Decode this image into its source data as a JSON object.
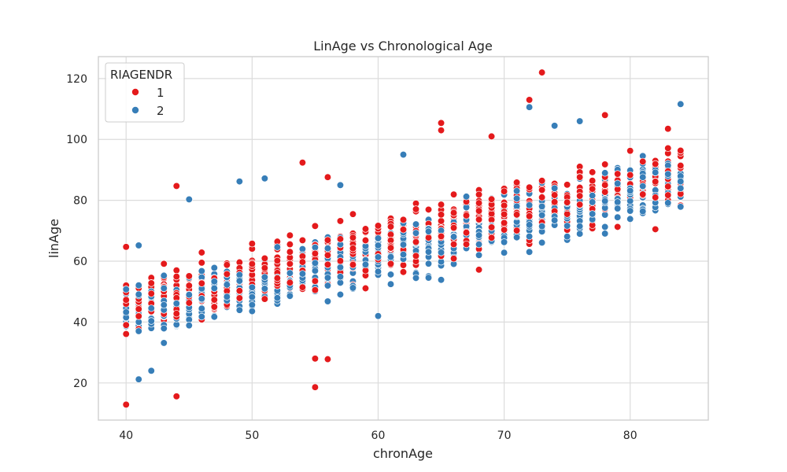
{
  "chart_data": {
    "type": "scatter",
    "title": "LinAge vs Chronological Age",
    "xlabel": "chronAge",
    "ylabel": "linAge",
    "xlim": [
      37.8,
      86.2
    ],
    "ylim": [
      7.8,
      127.2
    ],
    "xticks": [
      40,
      50,
      60,
      70,
      80
    ],
    "yticks": [
      20,
      40,
      60,
      80,
      100,
      120
    ],
    "grid": true,
    "legend": {
      "title": "RIAGENDR",
      "placement": "top-left"
    },
    "series": [
      {
        "name": "1",
        "color": "#e41a1c",
        "x_range": [
          40,
          84
        ],
        "note_points": [
          [
            40,
            12.9
          ],
          [
            40,
            64.7
          ],
          [
            44,
            15.6
          ],
          [
            44,
            84.7
          ],
          [
            54,
            92.4
          ],
          [
            55,
            18.6
          ],
          [
            55,
            28.0
          ],
          [
            56,
            27.8
          ],
          [
            56,
            87.6
          ],
          [
            65,
            105.4
          ],
          [
            65,
            103.0
          ],
          [
            69,
            101.0
          ],
          [
            72,
            113.0
          ],
          [
            73,
            122.0
          ],
          [
            78,
            108.0
          ],
          [
            82,
            70.5
          ],
          [
            83,
            103.5
          ]
        ]
      },
      {
        "name": "2",
        "color": "#377eb8",
        "x_range": [
          40,
          84
        ],
        "note_points": [
          [
            41,
            21.2
          ],
          [
            41,
            65.2
          ],
          [
            45,
            80.3
          ],
          [
            49,
            86.2
          ],
          [
            51,
            87.2
          ],
          [
            57,
            85.0
          ],
          [
            62,
            95.0
          ],
          [
            72,
            110.6
          ],
          [
            74,
            104.5
          ],
          [
            76,
            106.0
          ],
          [
            84,
            111.6
          ],
          [
            60,
            42.0
          ],
          [
            42,
            24.0
          ]
        ]
      }
    ]
  }
}
